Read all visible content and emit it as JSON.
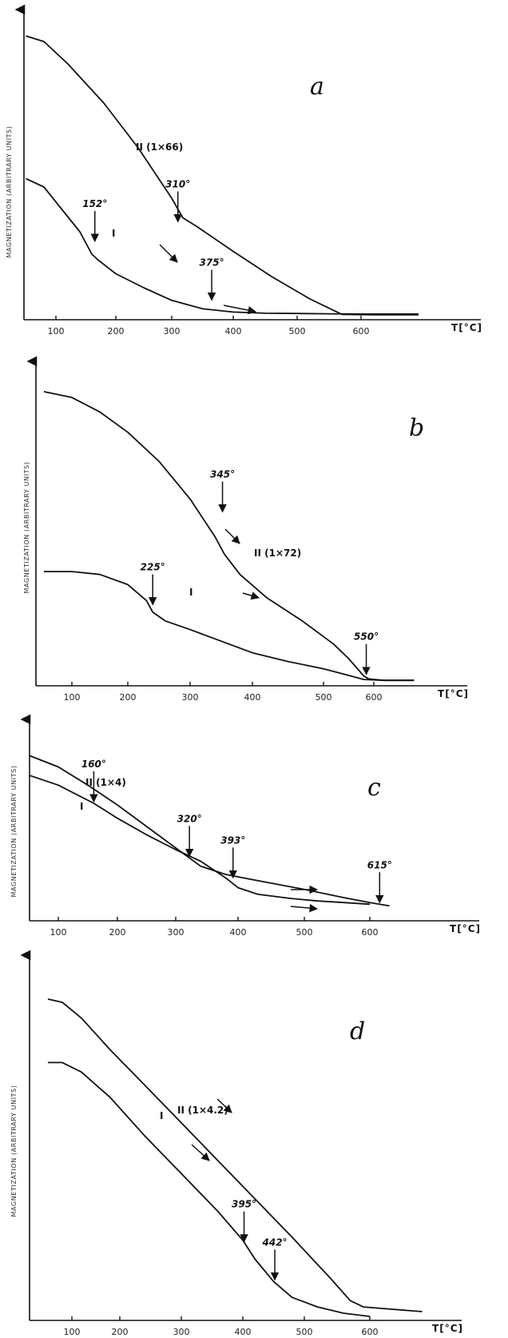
{
  "chart_data": [
    {
      "type": "line",
      "panel_label": "a",
      "ylabel": "MAGNETIZATION (ARBITRARY UNITS)",
      "xlabel": "T[°C]",
      "x_ticks": [
        100,
        200,
        300,
        400,
        500,
        600
      ],
      "xlim": [
        50,
        700
      ],
      "ylim": [
        0,
        100
      ],
      "series": [
        {
          "name": "II (1×66)",
          "x": [
            50,
            80,
            120,
            180,
            240,
            300,
            318,
            340,
            400,
            460,
            520,
            570,
            620,
            690
          ],
          "y": [
            100,
            98,
            90,
            76,
            60,
            42,
            35,
            32,
            23,
            14,
            6,
            0.5,
            0.3,
            0.3
          ]
        },
        {
          "name": "I",
          "x": [
            50,
            80,
            110,
            140,
            160,
            170,
            200,
            250,
            300,
            350,
            400,
            450,
            500,
            550,
            600,
            690
          ],
          "y": [
            49,
            46,
            38,
            30,
            22,
            20,
            15,
            10,
            5.5,
            2.5,
            1.3,
            0.9,
            0.8,
            0.7,
            0.6,
            0.6
          ]
        }
      ],
      "annotations": [
        {
          "label": "310°",
          "x": 310,
          "y": 33
        },
        {
          "label": "152°",
          "x": 165,
          "y": 26
        },
        {
          "label": "375°",
          "x": 365,
          "y": 5
        }
      ]
    },
    {
      "type": "line",
      "panel_label": "b",
      "ylabel": "MAGNETIZATION (ARBITRARY UNITS)",
      "xlabel": "T[°C]",
      "x_ticks": [
        100,
        200,
        300,
        400,
        500,
        600
      ],
      "xlim": [
        50,
        700
      ],
      "ylim": [
        0,
        100
      ],
      "series": [
        {
          "name": "II (1×72)",
          "x": [
            50,
            100,
            150,
            200,
            250,
            300,
            340,
            355,
            380,
            420,
            470,
            520,
            550,
            580,
            590,
            620,
            680
          ],
          "y": [
            100,
            98,
            93,
            86,
            76,
            63,
            50,
            44,
            37,
            29,
            21,
            13,
            8,
            2,
            1,
            0.5,
            0.5
          ]
        },
        {
          "name": "I",
          "x": [
            50,
            100,
            150,
            200,
            230,
            240,
            260,
            300,
            350,
            400,
            450,
            500,
            550,
            580,
            620,
            680
          ],
          "y": [
            38,
            38,
            37,
            33.5,
            28,
            24,
            21,
            18,
            14,
            10,
            7,
            4.5,
            2.2,
            0.8,
            0.5,
            0.5
          ]
        }
      ],
      "annotations": [
        {
          "label": "345°",
          "x": 352,
          "y": 58
        },
        {
          "label": "225°",
          "x": 240,
          "y": 26
        },
        {
          "label": "550°",
          "x": 585,
          "y": 2
        }
      ]
    },
    {
      "type": "line",
      "panel_label": "c",
      "ylabel": "MAGNETIZATION (ARBITRARY UNITS)",
      "xlabel": "T[°C]",
      "x_ticks": [
        100,
        200,
        300,
        400,
        500,
        600
      ],
      "xlim": [
        50,
        700
      ],
      "ylim": [
        0,
        100
      ],
      "series": [
        {
          "name": "II (1×4)",
          "x": [
            50,
            100,
            150,
            200,
            250,
            300,
            340,
            380,
            420,
            460,
            500,
            560,
            600,
            630
          ],
          "y": [
            100,
            93,
            82,
            70,
            57,
            44,
            33,
            28,
            25,
            22,
            19,
            14,
            11,
            9
          ]
        },
        {
          "name": "I",
          "x": [
            50,
            100,
            160,
            200,
            250,
            300,
            340,
            380,
            400,
            430,
            480,
            520,
            560,
            600
          ],
          "y": [
            88,
            82,
            71,
            62,
            52,
            43,
            36,
            26,
            20,
            16,
            13.5,
            12,
            11,
            10
          ]
        }
      ],
      "annotations": [
        {
          "label": "160°",
          "x": 160,
          "y": 71
        },
        {
          "label": "320°",
          "x": 322,
          "y": 38
        },
        {
          "label": "393°",
          "x": 392,
          "y": 25
        },
        {
          "label": "615°",
          "x": 615,
          "y": 10
        }
      ]
    },
    {
      "type": "line",
      "panel_label": "d",
      "ylabel": "MAGNETIZATION (ARBITRARY UNITS)",
      "xlabel": "T[°C]",
      "x_ticks": [
        100,
        200,
        300,
        400,
        500,
        600
      ],
      "xlim": [
        50,
        700
      ],
      "ylim": [
        0,
        100
      ],
      "series": [
        {
          "name": "II (1×4.2)",
          "x": [
            50,
            80,
            120,
            180,
            240,
            300,
            360,
            420,
            480,
            540,
            570,
            590,
            620,
            680
          ],
          "y": [
            100,
            99,
            94,
            84,
            73,
            61,
            49,
            37,
            25,
            12,
            5,
            3,
            2.5,
            1.5
          ]
        },
        {
          "name": "I",
          "x": [
            50,
            80,
            120,
            180,
            240,
            300,
            360,
            400,
            420,
            450,
            480,
            520,
            560,
            600
          ],
          "y": [
            80,
            80,
            77,
            69,
            57,
            45,
            33,
            24,
            18,
            11,
            6,
            3,
            1,
            0
          ]
        }
      ],
      "annotations": [
        {
          "label": "395°",
          "x": 402,
          "y": 23
        },
        {
          "label": "442°",
          "x": 452,
          "y": 11
        }
      ]
    }
  ]
}
